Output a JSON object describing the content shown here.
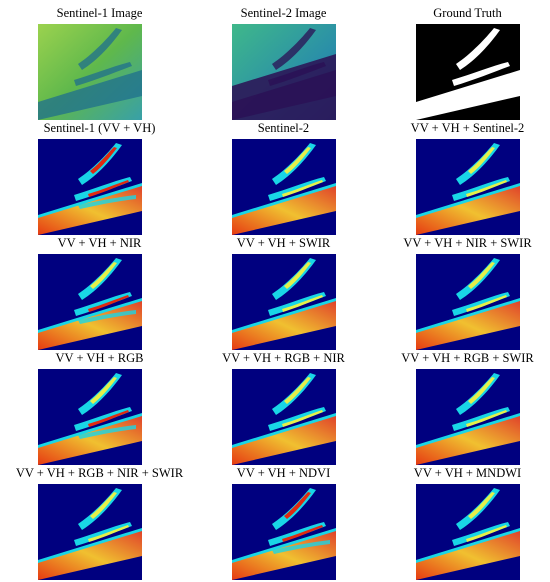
{
  "panels": [
    {
      "caption": "Sentinel-1 Image",
      "kind": "s1"
    },
    {
      "caption": "Sentinel-2 Image",
      "kind": "s2"
    },
    {
      "caption": "Ground Truth",
      "kind": "gt"
    },
    {
      "caption": "Sentinel-1 (VV + VH)",
      "kind": "heat-a"
    },
    {
      "caption": "Sentinel-2",
      "kind": "heat-b"
    },
    {
      "caption": "VV + VH + Sentinel-2",
      "kind": "heat-b"
    },
    {
      "caption": "VV + VH + NIR",
      "kind": "heat-c"
    },
    {
      "caption": "VV + VH + SWIR",
      "kind": "heat-b"
    },
    {
      "caption": "VV + VH + NIR + SWIR",
      "kind": "heat-b"
    },
    {
      "caption": "VV + VH + RGB",
      "kind": "heat-c"
    },
    {
      "caption": "VV + VH + RGB + NIR",
      "kind": "heat-b"
    },
    {
      "caption": "VV + VH + RGB + SWIR",
      "kind": "heat-b"
    },
    {
      "caption": "VV + VH + RGB + NIR + SWIR",
      "kind": "heat-b"
    },
    {
      "caption": "VV + VH + NDVI",
      "kind": "heat-a"
    },
    {
      "caption": "VV + VH + MNDWI",
      "kind": "heat-b"
    }
  ],
  "colors": {
    "jet_background": "#00007f",
    "jet_cyan": "#19d6e6",
    "jet_yellow": "#e6f04a",
    "jet_red": "#e02a10",
    "s1_green": "#7ec44a",
    "s2_teal": "#2fa4a0",
    "s2_dark": "#2b0f54"
  }
}
